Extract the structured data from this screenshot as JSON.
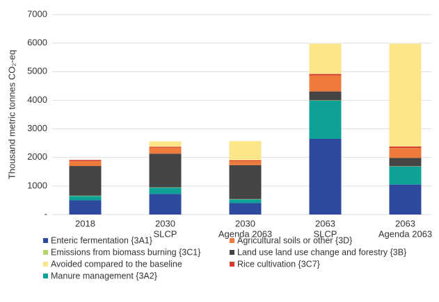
{
  "chart_data": {
    "type": "stacked_bar",
    "ylabel": "Thousand metric tonnes CO₂-eq",
    "categories": [
      [
        "2018"
      ],
      [
        "2030",
        "SLCP"
      ],
      [
        "2030",
        "Agenda 2063"
      ],
      [
        "2063",
        "SLCP"
      ],
      [
        "2063",
        "Agenda 2063"
      ]
    ],
    "series": [
      {
        "name": "Enteric fermentation {3A1}",
        "color": "#2e4a9e",
        "values": [
          500,
          720,
          400,
          2650,
          1050
        ]
      },
      {
        "name": "Agricultural soils or other {3D}",
        "color": "#ee7b3b",
        "values": [
          170,
          210,
          140,
          560,
          350
        ]
      },
      {
        "name": "Emissions from biomass burning {3C1}",
        "color": "#b5d56a",
        "values": [
          10,
          10,
          10,
          10,
          10
        ]
      },
      {
        "name": "Land use land use change and forestry {3B}",
        "color": "#454545",
        "values": [
          1040,
          1180,
          1190,
          310,
          290
        ]
      },
      {
        "name": "Avoided compared to the baseline",
        "color": "#fde68a",
        "values": [
          0,
          190,
          670,
          1060,
          3600
        ]
      },
      {
        "name": "Rice cultivation {3C7}",
        "color": "#d63a2f",
        "values": [
          40,
          30,
          30,
          50,
          50
        ]
      },
      {
        "name": "Manure management {3A2}",
        "color": "#0ea195",
        "values": [
          150,
          220,
          130,
          1340,
          630
        ]
      }
    ],
    "stack_order": [
      0,
      6,
      2,
      3,
      1,
      5,
      4
    ],
    "ylim": [
      0,
      7000
    ],
    "yticks": [
      {
        "value": 0,
        "label": "-"
      },
      1000,
      2000,
      3000,
      4000,
      5000,
      6000,
      7000
    ],
    "grid": true
  }
}
